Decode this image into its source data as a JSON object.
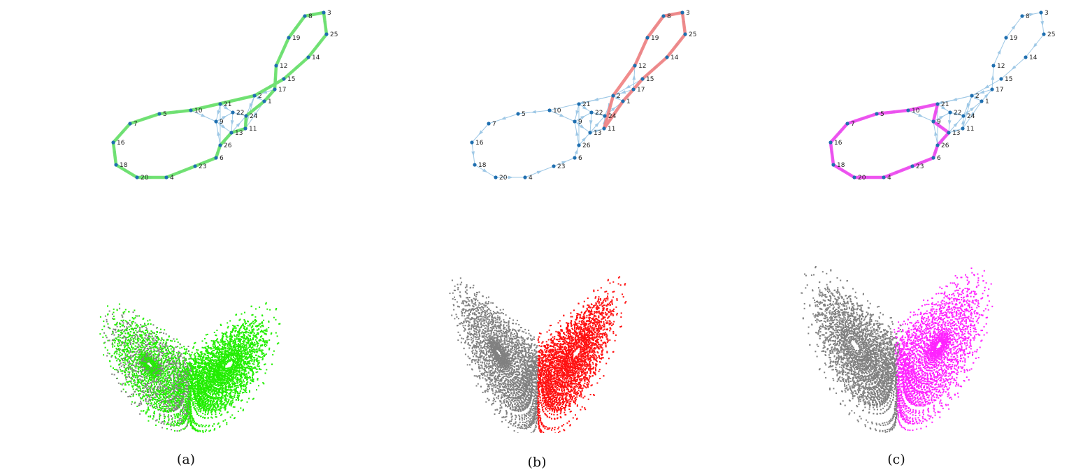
{
  "figure": {
    "panels": [
      {
        "caption": "(a)",
        "highlight_color": "#66e066",
        "cloud_color": "#22ee00",
        "path": [
          "3",
          "25",
          "14",
          "15",
          "2",
          "10",
          "5",
          "7",
          "16",
          "18",
          "20",
          "4",
          "23",
          "6",
          "26",
          "13",
          "11",
          "24",
          "1",
          "17",
          "12",
          "19",
          "8",
          "3"
        ]
      },
      {
        "caption": "(b)",
        "highlight_color": "#f08080",
        "cloud_color": "#ff1111",
        "path": [
          "8",
          "3",
          "25",
          "14",
          "15",
          "17",
          "1",
          "11",
          "2",
          "12",
          "19",
          "8"
        ]
      },
      {
        "caption": "(c)",
        "highlight_color": "#ee44ee",
        "cloud_color": "#ff22ff",
        "path": [
          "10",
          "5",
          "7",
          "16",
          "18",
          "20",
          "4",
          "23",
          "6",
          "26",
          "13",
          "9",
          "21",
          "10"
        ]
      }
    ],
    "background_color": "#808080",
    "edge_color": "#9ec8e6",
    "node_color": "#1f6fb0",
    "nodes": [
      "1",
      "2",
      "3",
      "4",
      "5",
      "6",
      "7",
      "8",
      "9",
      "10",
      "11",
      "12",
      "13",
      "14",
      "15",
      "16",
      "17",
      "18",
      "19",
      "20",
      "21",
      "22",
      "23",
      "24",
      "25",
      "26"
    ],
    "edges": [
      [
        "3",
        "25"
      ],
      [
        "25",
        "14"
      ],
      [
        "14",
        "15"
      ],
      [
        "15",
        "2"
      ],
      [
        "2",
        "10"
      ],
      [
        "10",
        "5"
      ],
      [
        "5",
        "7"
      ],
      [
        "7",
        "16"
      ],
      [
        "16",
        "18"
      ],
      [
        "18",
        "20"
      ],
      [
        "20",
        "4"
      ],
      [
        "4",
        "23"
      ],
      [
        "23",
        "6"
      ],
      [
        "6",
        "26"
      ],
      [
        "26",
        "13"
      ],
      [
        "13",
        "11"
      ],
      [
        "11",
        "24"
      ],
      [
        "24",
        "1"
      ],
      [
        "1",
        "17"
      ],
      [
        "17",
        "12"
      ],
      [
        "12",
        "19"
      ],
      [
        "19",
        "8"
      ],
      [
        "8",
        "3"
      ],
      [
        "2",
        "21"
      ],
      [
        "21",
        "9"
      ],
      [
        "9",
        "13"
      ],
      [
        "10",
        "9"
      ],
      [
        "9",
        "22"
      ],
      [
        "22",
        "24"
      ],
      [
        "21",
        "22"
      ],
      [
        "2",
        "1"
      ],
      [
        "1",
        "11"
      ],
      [
        "2",
        "24"
      ],
      [
        "22",
        "13"
      ],
      [
        "26",
        "9"
      ],
      [
        "13",
        "24"
      ],
      [
        "11",
        "2"
      ],
      [
        "17",
        "2"
      ],
      [
        "21",
        "26"
      ]
    ]
  }
}
